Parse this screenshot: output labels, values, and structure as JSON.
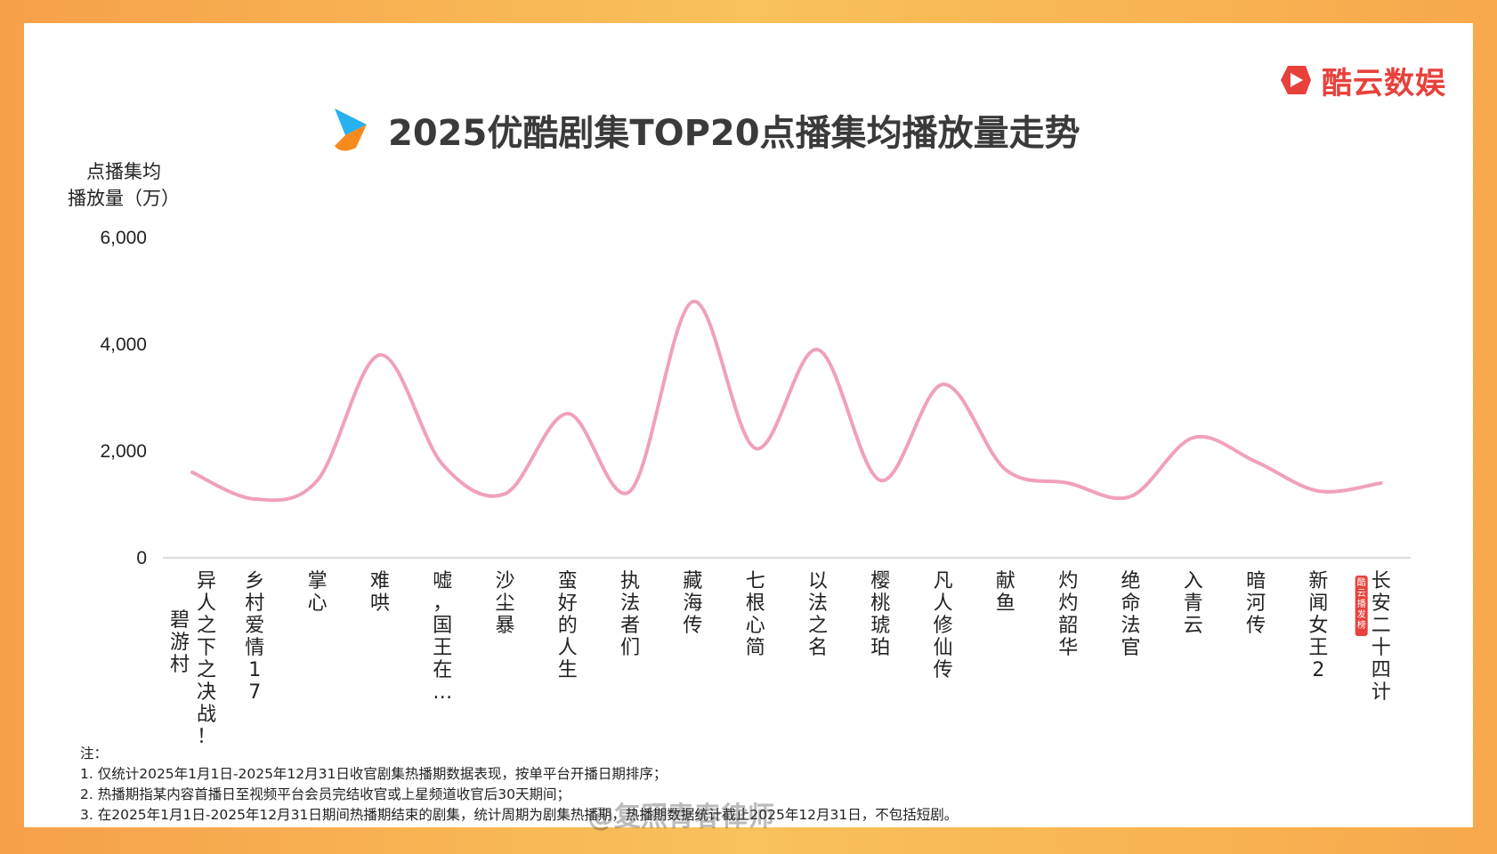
{
  "brand": {
    "name": "酷云数娱",
    "color": "#e8413c"
  },
  "title": "2025优酷剧集TOP20点播集均播放量走势",
  "chart_data": {
    "type": "line",
    "title": "2025优酷剧集TOP20点播集均播放量走势",
    "ylabel_lines": [
      "点播集均",
      "播放量（万）"
    ],
    "xlabel": "",
    "ylim": [
      0,
      6000
    ],
    "yticks": [
      0,
      2000,
      4000,
      6000
    ],
    "ytick_labels": [
      "0",
      "2,000",
      "4,000",
      "6,000"
    ],
    "grid": false,
    "line_color": "#f0a0bc",
    "categories": [
      "碧游村 异人之下之决战！",
      "乡村爱情17",
      "掌心",
      "难哄",
      "嘘，国王在…",
      "沙尘暴",
      "蛮好的人生",
      "执法者们",
      "藏海传",
      "七根心简",
      "以法之名",
      "樱桃琥珀",
      "凡人修仙传",
      "献鱼",
      "灼灼韶华",
      "绝命法官",
      "入青云",
      "暗河传",
      "新闻女王2",
      "长安二十四计"
    ],
    "category_lines": [
      [
        "异人之下之决战！",
        "碧游村"
      ],
      [
        "乡村爱情17"
      ],
      [
        "掌心"
      ],
      [
        "难哄"
      ],
      [
        "嘘，国王在…"
      ],
      [
        "沙尘暴"
      ],
      [
        "蛮好的人生"
      ],
      [
        "执法者们"
      ],
      [
        "藏海传"
      ],
      [
        "七根心简"
      ],
      [
        "以法之名"
      ],
      [
        "樱桃琥珀"
      ],
      [
        "凡人修仙传"
      ],
      [
        "献鱼"
      ],
      [
        "灼灼韶华"
      ],
      [
        "绝命法官"
      ],
      [
        "入青云"
      ],
      [
        "暗河传"
      ],
      [
        "新闻女王2"
      ],
      [
        "长安二十四计"
      ]
    ],
    "series": [
      {
        "name": "点播集均播放量（万）",
        "values": [
          1600,
          1100,
          1450,
          3800,
          1750,
          1200,
          2700,
          1250,
          4800,
          2050,
          3900,
          1450,
          3250,
          1650,
          1400,
          1150,
          2250,
          1800,
          1250,
          1400
        ]
      }
    ],
    "badge_text": "酷云播发榜"
  },
  "notes": [
    "注：",
    "1. 仅统计2025年1月1日-2025年12月31日收官剧集热播期数据表现，按单平台开播日期排序；",
    "2. 热播期指某内容首播日至视频平台会员完结收官或上星频道收官后30天期间；",
    "3. 在2025年1月1日-2025年12月31日期间热播期结束的剧集，统计周期为剧集热播期，热播期数据统计截止2025年12月31日，不包括短剧。"
  ],
  "watermark": "@复照青春律师"
}
